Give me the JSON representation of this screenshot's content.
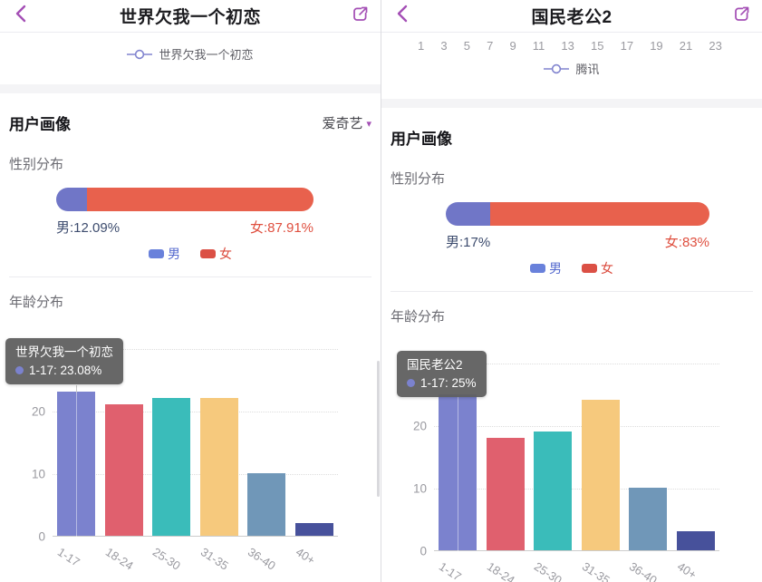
{
  "accent_color": "#A44FB5",
  "panels": [
    {
      "header": {
        "title": "世界欠我一个初恋"
      },
      "top_legend": {
        "label": "世界欠我一个初恋"
      },
      "profile_title": "用户画像",
      "source_label": "爱奇艺",
      "gender": {
        "title": "性别分布",
        "male_label": "男:12.09%",
        "female_label": "女:87.91%",
        "male_pct": 12.09,
        "female_pct": 87.91,
        "legend_male": "男",
        "legend_female": "女"
      },
      "age": {
        "title": "年龄分布",
        "tooltip": {
          "title": "世界欠我一个初恋",
          "value": "1-17: 23.08%"
        }
      }
    },
    {
      "header": {
        "title": "国民老公2"
      },
      "top_axis_ticks": [
        "1",
        "3",
        "5",
        "7",
        "9",
        "11",
        "13",
        "15",
        "17",
        "19",
        "21",
        "23"
      ],
      "top_legend": {
        "label": "腾讯"
      },
      "profile_title": "用户画像",
      "gender": {
        "title": "性别分布",
        "male_label": "男:17%",
        "female_label": "女:83%",
        "male_pct": 17,
        "female_pct": 83,
        "legend_male": "男",
        "legend_female": "女"
      },
      "age": {
        "title": "年龄分布",
        "tooltip": {
          "title": "国民老公2",
          "value": "1-17: 25%"
        }
      }
    }
  ],
  "chart_data": [
    {
      "id": "gender-left",
      "type": "bar",
      "subtype": "stacked-horizontal",
      "title": "性别分布 (世界欠我一个初恋)",
      "categories": [
        "男",
        "女"
      ],
      "values": [
        12.09,
        87.91
      ],
      "unit": "%",
      "colors": [
        "#7076C7",
        "#E8614D"
      ]
    },
    {
      "id": "age-left",
      "type": "bar",
      "title": "年龄分布 (世界欠我一个初恋)",
      "categories": [
        "1-17",
        "18-24",
        "25-30",
        "31-35",
        "36-40",
        "40+"
      ],
      "values": [
        23.08,
        21,
        22,
        22,
        10,
        2
      ],
      "unit": "%",
      "ylim": [
        0,
        30
      ],
      "yticks": [
        0,
        10,
        20,
        30
      ],
      "grid": "dotted",
      "highlight_index": 0,
      "bar_colors": [
        "#7B82CE",
        "#E0606E",
        "#3ABCBA",
        "#F6C97D",
        "#7097B8",
        "#47519B"
      ]
    },
    {
      "id": "gender-right",
      "type": "bar",
      "subtype": "stacked-horizontal",
      "title": "性别分布 (国民老公2)",
      "categories": [
        "男",
        "女"
      ],
      "values": [
        17,
        83
      ],
      "unit": "%",
      "colors": [
        "#7076C7",
        "#E8614D"
      ]
    },
    {
      "id": "age-right",
      "type": "bar",
      "title": "年龄分布 (国民老公2)",
      "categories": [
        "1-17",
        "18-24",
        "25-30",
        "31-35",
        "36-40",
        "40+"
      ],
      "values": [
        25,
        18,
        19,
        24,
        10,
        3
      ],
      "unit": "%",
      "ylim": [
        0,
        30
      ],
      "yticks": [
        0,
        10,
        20,
        30
      ],
      "grid": "dotted",
      "highlight_index": 0,
      "bar_colors": [
        "#7B82CE",
        "#E0606E",
        "#3ABCBA",
        "#F6C97D",
        "#7097B8",
        "#47519B"
      ]
    }
  ]
}
